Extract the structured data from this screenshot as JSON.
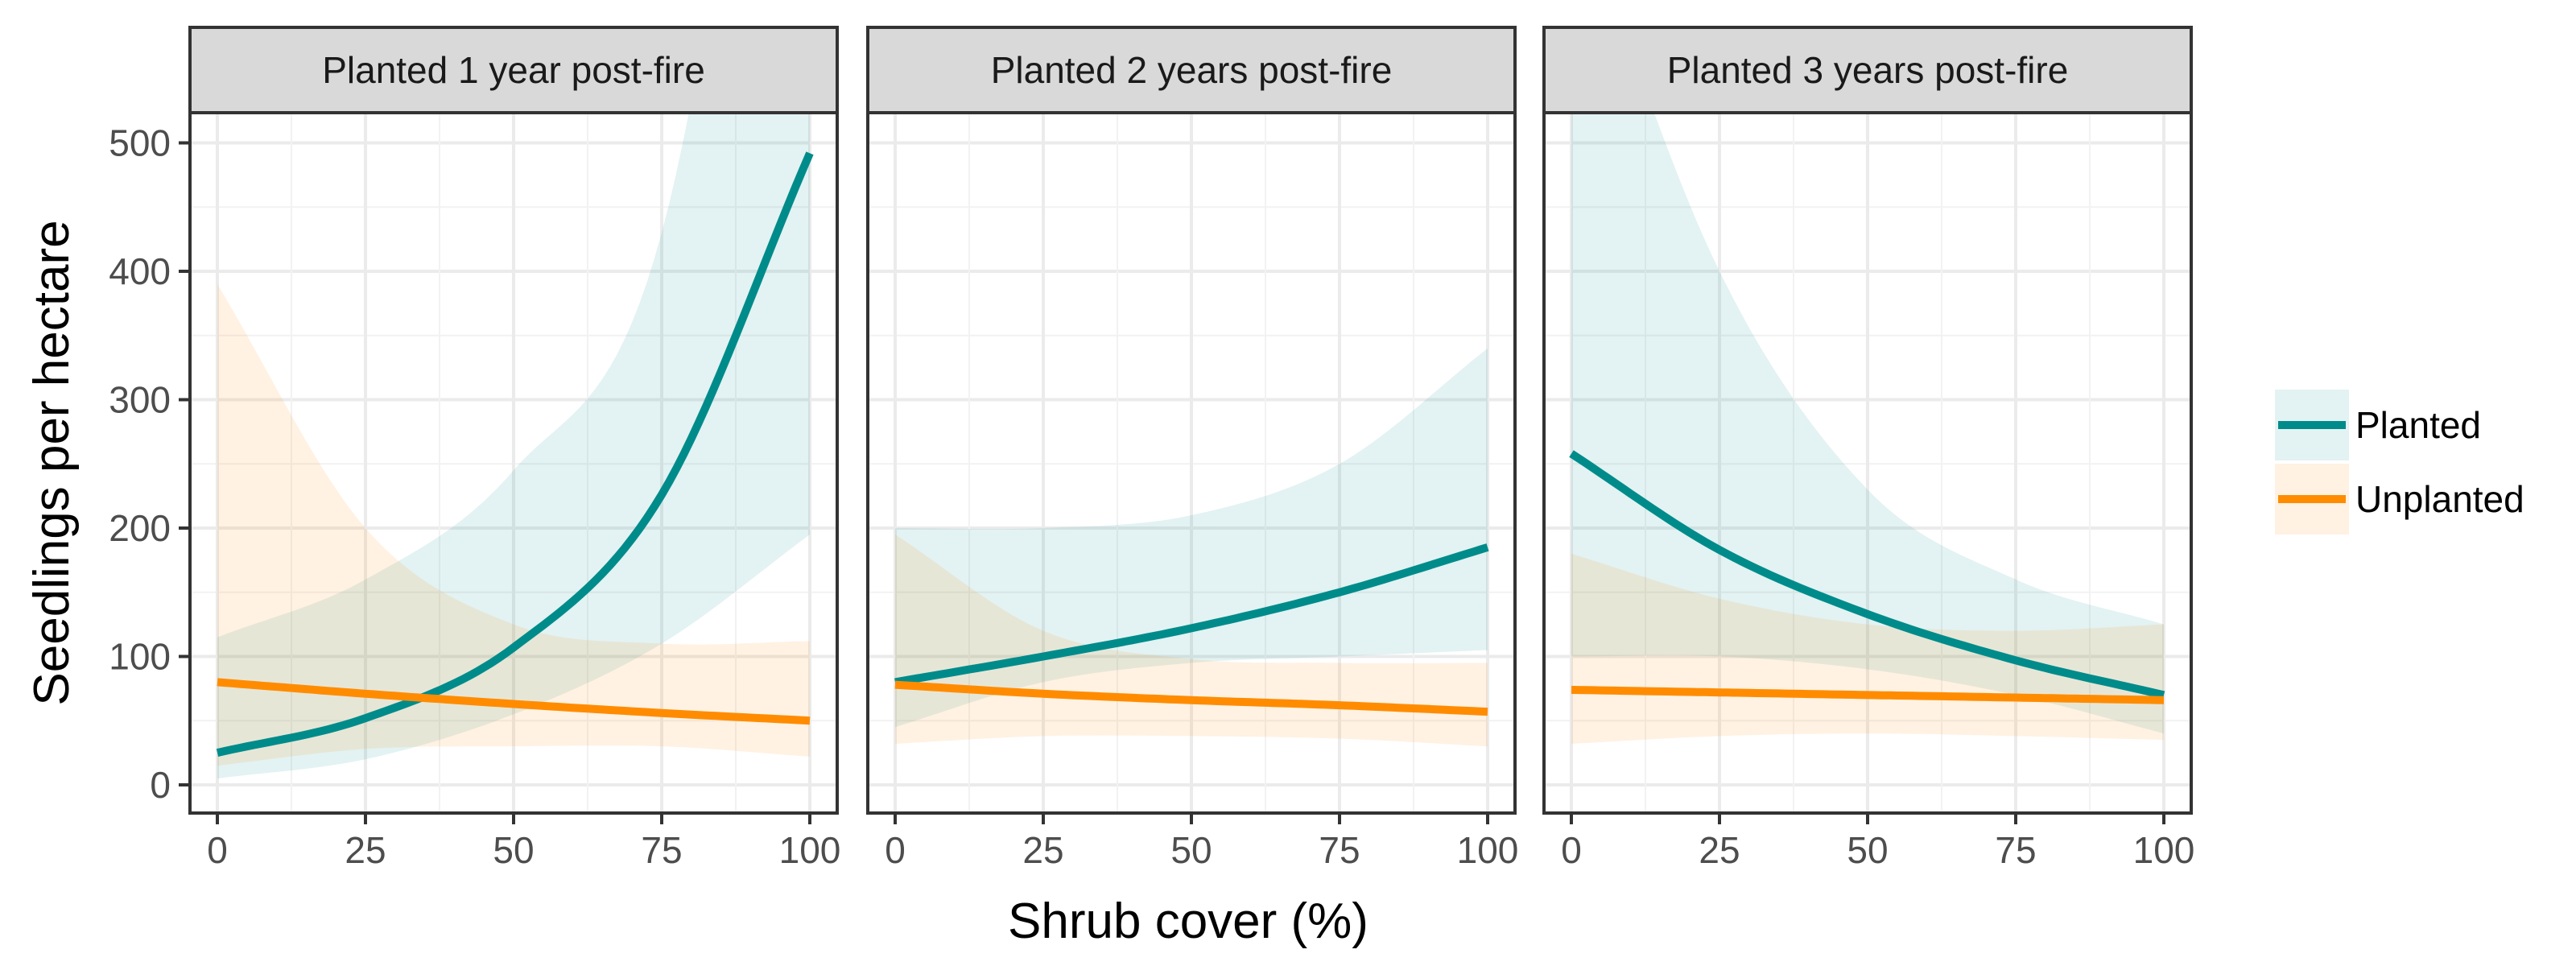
{
  "chart_data": {
    "type": "line",
    "xlabel": "Shrub cover (%)",
    "ylabel": "Seedlings per hectare",
    "xlim": [
      0,
      100
    ],
    "ylim": [
      0,
      500
    ],
    "x_ticks": [
      0,
      25,
      50,
      75,
      100
    ],
    "y_ticks": [
      0,
      100,
      200,
      300,
      400,
      500
    ],
    "grid": true,
    "legend_position": "right",
    "legend": [
      {
        "name": "Planted",
        "color": "#008B8B"
      },
      {
        "name": "Unplanted",
        "color": "#FF8C00"
      }
    ],
    "panels": [
      {
        "title": "Planted 1 year post-fire",
        "series": [
          {
            "name": "Planted",
            "color": "#008B8B",
            "x": [
              0,
              25,
              50,
              75,
              100
            ],
            "y": [
              25,
              52,
              107,
              226,
              492
            ],
            "lower": [
              5,
              20,
              55,
              110,
              195
            ],
            "upper": [
              115,
              160,
              245,
              430,
              1100
            ]
          },
          {
            "name": "Unplanted",
            "color": "#FF8C00",
            "x": [
              0,
              25,
              50,
              75,
              100
            ],
            "y": [
              80,
              71,
              63,
              56,
              50
            ],
            "lower": [
              15,
              28,
              30,
              30,
              22
            ],
            "upper": [
              390,
              200,
              125,
              110,
              112
            ]
          }
        ]
      },
      {
        "title": "Planted 2 years post-fire",
        "series": [
          {
            "name": "Planted",
            "color": "#008B8B",
            "x": [
              0,
              25,
              50,
              75,
              100
            ],
            "y": [
              80,
              100,
              122,
              150,
              185
            ],
            "lower": [
              45,
              80,
              95,
              100,
              105
            ],
            "upper": [
              200,
              200,
              210,
              250,
              340
            ]
          },
          {
            "name": "Unplanted",
            "color": "#FF8C00",
            "x": [
              0,
              25,
              50,
              75,
              100
            ],
            "y": [
              78,
              71,
              66,
              62,
              57
            ],
            "lower": [
              32,
              38,
              38,
              36,
              30
            ],
            "upper": [
              195,
              120,
              98,
              95,
              95
            ]
          }
        ]
      },
      {
        "title": "Planted 3 years post-fire",
        "series": [
          {
            "name": "Planted",
            "color": "#008B8B",
            "x": [
              0,
              25,
              50,
              75,
              100
            ],
            "y": [
              258,
              183,
              133,
              97,
              70
            ],
            "lower": [
              100,
              100,
              90,
              70,
              40
            ],
            "upper": [
              700,
              400,
              230,
              160,
              125
            ]
          },
          {
            "name": "Unplanted",
            "color": "#FF8C00",
            "x": [
              0,
              25,
              50,
              75,
              100
            ],
            "y": [
              74,
              72,
              70,
              68,
              66
            ],
            "lower": [
              32,
              38,
              40,
              38,
              35
            ],
            "upper": [
              180,
              145,
              125,
              120,
              125
            ]
          }
        ]
      }
    ]
  }
}
